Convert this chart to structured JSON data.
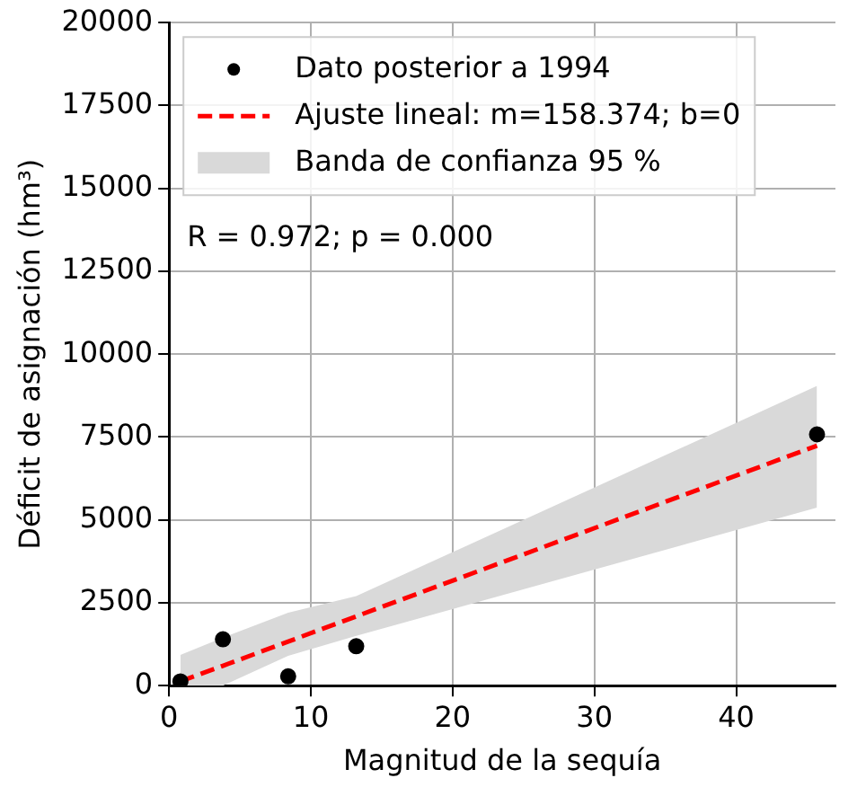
{
  "chart_data": {
    "type": "scatter",
    "xlabel": "Magnitud de la sequía",
    "ylabel": "Déficit de asignación (hm³)",
    "xlim": [
      0,
      47
    ],
    "xticks": [
      0,
      10,
      20,
      30,
      40
    ],
    "ylim": [
      0,
      20000
    ],
    "yticks": [
      0,
      2500,
      5000,
      7500,
      10000,
      12500,
      15000,
      17500,
      20000
    ],
    "grid": true,
    "legend": "top left",
    "annotations": [
      "R = 0.972; p = 0.000"
    ],
    "series": [
      {
        "type": "scatter",
        "name": "Dato posterior a 1994",
        "color": "#000000",
        "marker": "circle",
        "x": [
          0.8,
          3.8,
          8.4,
          13.2,
          45.7
        ],
        "values": [
          130,
          1400,
          280,
          1190,
          7580
        ]
      },
      {
        "type": "line",
        "name": "Ajuste lineal: m=158.374; b=0",
        "color": "#ff0000",
        "line_style": "dashed",
        "marker": "none",
        "x": [
          0.8,
          3.8,
          8.4,
          13.2,
          45.7
        ],
        "values": [
          130,
          600,
          1330,
          2090,
          7240
        ],
        "lower": [
          0,
          0,
          900,
          1500,
          5370
        ],
        "upper": [
          930,
          1450,
          2200,
          2700,
          9040
        ]
      },
      {
        "type": "area",
        "name": "Banda de confianza 95 %",
        "color": "#d9d9d9"
      }
    ]
  }
}
